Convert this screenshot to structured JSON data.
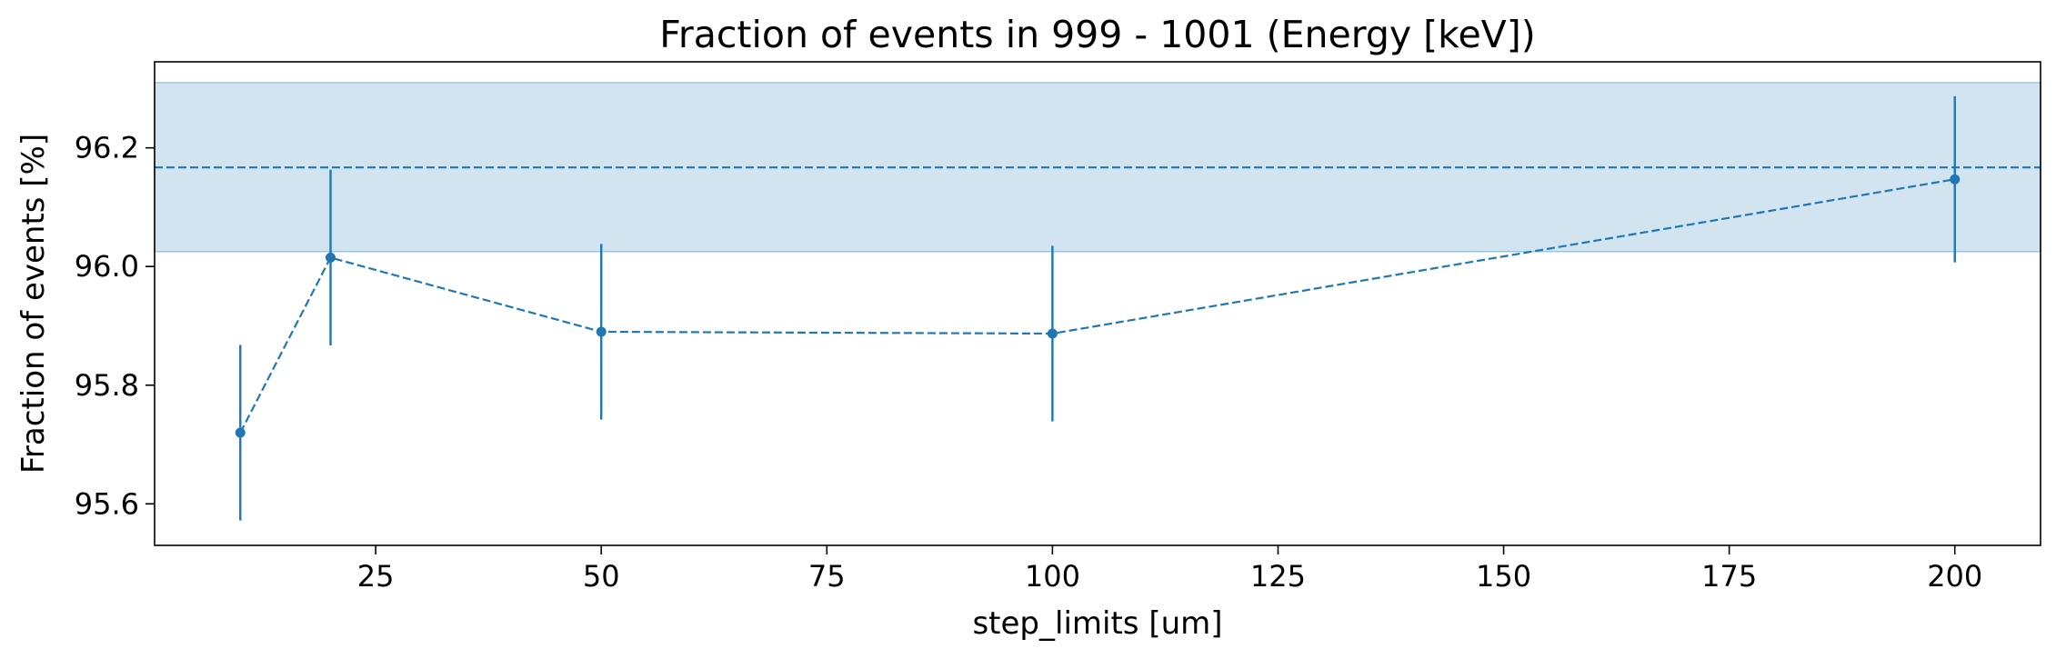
{
  "chart_data": {
    "type": "line",
    "title": "Fraction of events in 999 - 1001 (Energy [keV])",
    "xlabel": "step_limits [um]",
    "ylabel": "Fraction of events [%]",
    "xlim": [
      0.5,
      209.5
    ],
    "ylim": [
      95.53,
      96.345
    ],
    "xticks": [
      25,
      50,
      75,
      100,
      125,
      150,
      175,
      200
    ],
    "yticks": [
      95.6,
      95.8,
      96.0,
      96.2
    ],
    "xtick_labels": [
      "25",
      "50",
      "75",
      "100",
      "125",
      "150",
      "175",
      "200"
    ],
    "ytick_labels": [
      "95.6",
      "95.8",
      "96.0",
      "96.2"
    ],
    "grid": false,
    "series": [
      {
        "x": [
          10,
          20,
          50,
          100,
          200
        ],
        "y": [
          95.72,
          96.015,
          95.89,
          95.887,
          96.147
        ],
        "yerr": [
          0.148,
          0.148,
          0.148,
          0.148,
          0.14
        ],
        "line_style": "dashed",
        "marker": "circle",
        "color": "#1f77b4"
      }
    ],
    "reference": {
      "value": 96.167,
      "band": [
        96.025,
        96.31
      ],
      "line_style": "dashed",
      "color": "#1f77b4",
      "band_color": "#1f77b4",
      "band_alpha": 0.2
    }
  }
}
